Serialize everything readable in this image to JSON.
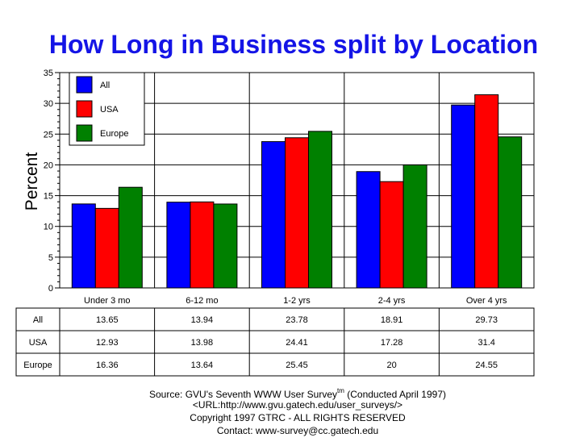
{
  "chart_data": {
    "type": "bar",
    "title": "How Long in Business split by Location",
    "ylabel": "Percent",
    "xlabel": "",
    "ylim": [
      0,
      35
    ],
    "yticks": [
      0,
      5,
      10,
      15,
      20,
      25,
      30,
      35
    ],
    "grid": true,
    "legend_position": "top-left",
    "categories": [
      "Under 3 mo",
      "6-12 mo",
      "1-2 yrs",
      "2-4 yrs",
      "Over 4 yrs"
    ],
    "series": [
      {
        "name": "All",
        "color": "#0000ff",
        "values": [
          13.65,
          13.94,
          23.78,
          18.91,
          29.73
        ],
        "labels": [
          "13.65",
          "13.94",
          "23.78",
          "18.91",
          "29.73"
        ]
      },
      {
        "name": "USA",
        "color": "#ff0000",
        "values": [
          12.93,
          13.98,
          24.41,
          17.28,
          31.4
        ],
        "labels": [
          "12.93",
          "13.98",
          "24.41",
          "17.28",
          "31.4"
        ]
      },
      {
        "name": "Europe",
        "color": "#008000",
        "values": [
          16.36,
          13.64,
          25.45,
          20,
          24.55
        ],
        "labels": [
          "16.36",
          "13.64",
          "25.45",
          "20",
          "24.55"
        ]
      }
    ]
  },
  "footer": {
    "line1_main": "Source: GVU's Seventh WWW User Survey",
    "line1_sup": "tm",
    "line1_tail": " (Conducted April 1997)",
    "line2": "<URL:http://www.gvu.gatech.edu/user_surveys/>",
    "line3": "Copyright 1997 GTRC - ALL RIGHTS RESERVED",
    "line4": "Contact: www-survey@cc.gatech.edu"
  }
}
